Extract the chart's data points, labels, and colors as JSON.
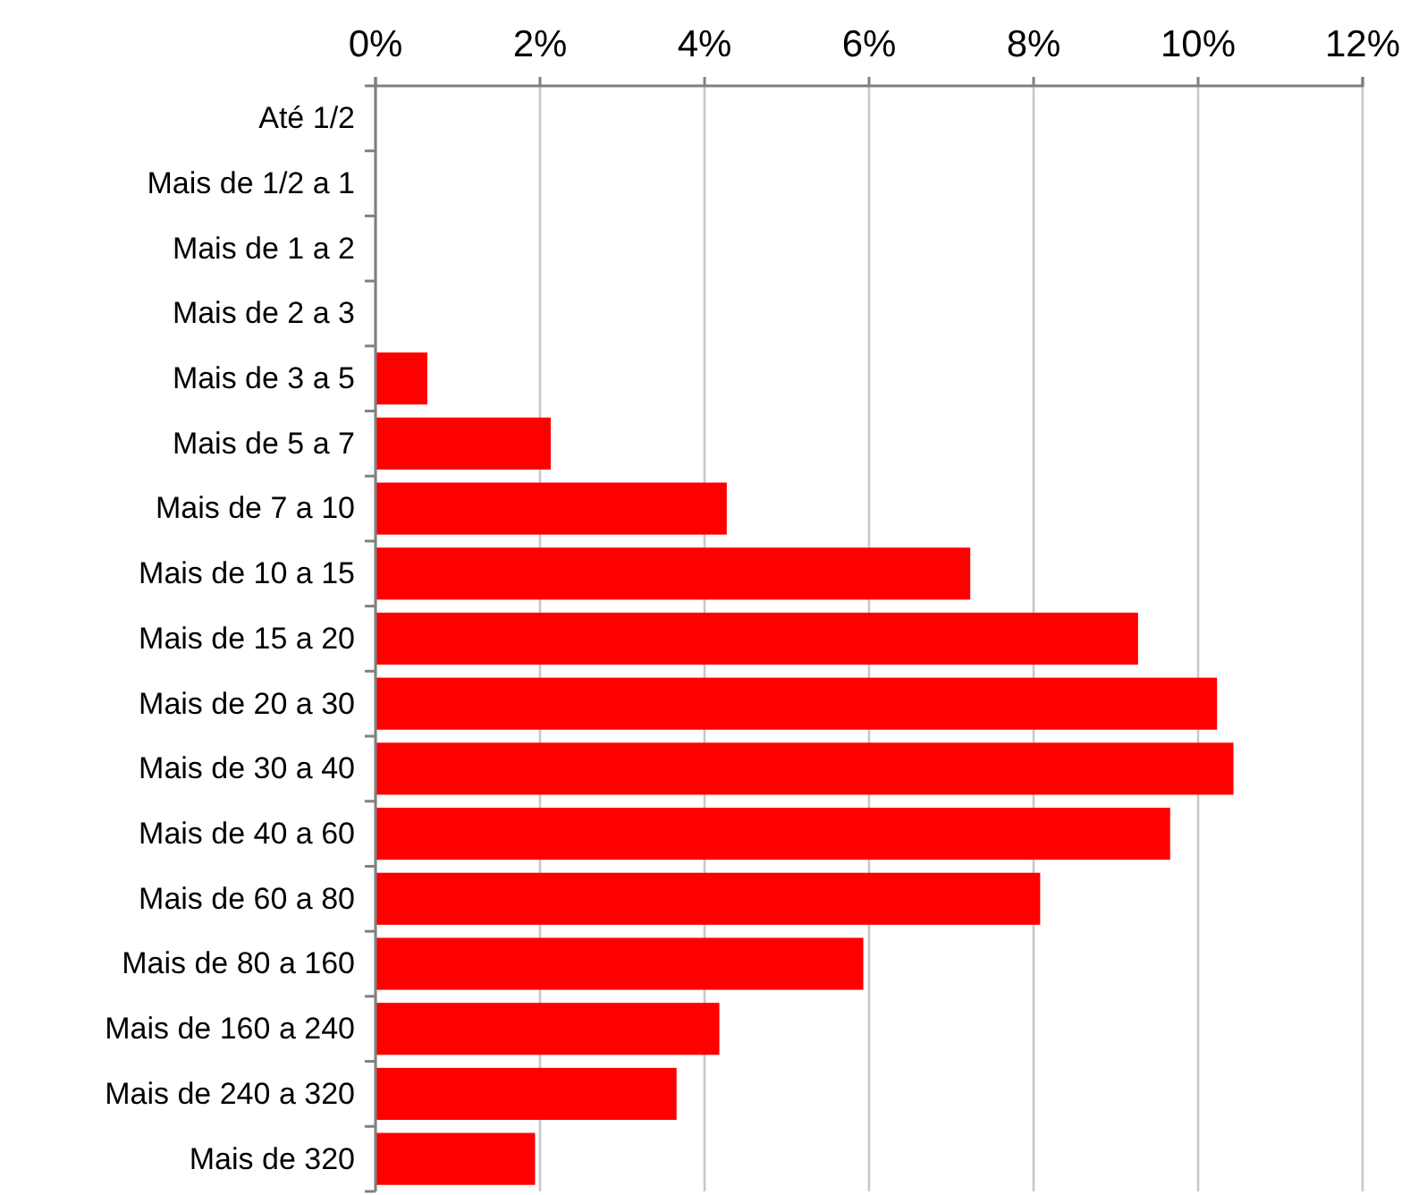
{
  "chart_data": {
    "type": "bar",
    "orientation": "horizontal",
    "categories": [
      "Até 1/2",
      "Mais de 1/2 a 1",
      "Mais de 1 a 2",
      "Mais de 2 a 3",
      "Mais de 3 a 5",
      "Mais de 5 a 7",
      "Mais de 7 a 10",
      "Mais de 10 a 15",
      "Mais de 15 a 20",
      "Mais de 20 a 30",
      "Mais de 30 a 40",
      "Mais de 40 a 60",
      "Mais de 60 a 80",
      "Mais de 80 a 160",
      "Mais de 160 a 240",
      "Mais de 240 a 320",
      "Mais de 320"
    ],
    "values": [
      0,
      0,
      0,
      0,
      0.63,
      2.13,
      4.27,
      7.23,
      9.27,
      10.23,
      10.43,
      9.66,
      8.08,
      5.93,
      4.18,
      3.66,
      1.94
    ],
    "color": "#ff0000",
    "xlim": [
      0,
      12
    ],
    "xticks": [
      {
        "value": 0,
        "label": "0%"
      },
      {
        "value": 2,
        "label": "2%"
      },
      {
        "value": 4,
        "label": "4%"
      },
      {
        "value": 6,
        "label": "6%"
      },
      {
        "value": 8,
        "label": "8%"
      },
      {
        "value": 10,
        "label": "10%"
      },
      {
        "value": 12,
        "label": "12%"
      }
    ],
    "grid": "x"
  }
}
